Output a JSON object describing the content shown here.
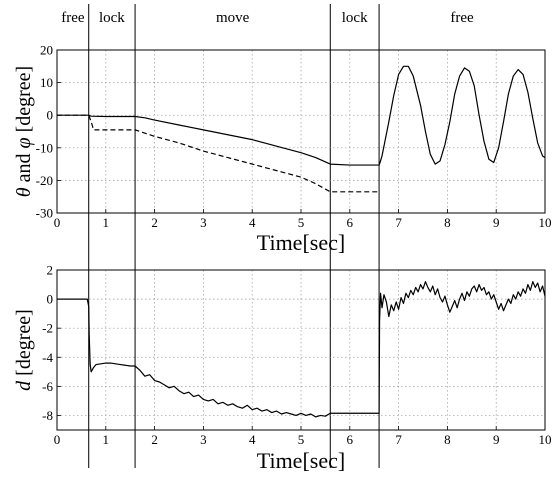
{
  "phases": [
    {
      "label": "free",
      "start": 0,
      "end": 0.65
    },
    {
      "label": "lock",
      "start": 0.65,
      "end": 1.6
    },
    {
      "label": "move",
      "start": 1.6,
      "end": 5.6
    },
    {
      "label": "lock",
      "start": 5.6,
      "end": 6.6
    },
    {
      "label": "free",
      "start": 6.6,
      "end": 10
    }
  ],
  "chart_data": [
    {
      "type": "line",
      "title": "",
      "xlabel": "Time[sec]",
      "ylabel_parts": [
        "θ",
        " and ",
        "φ",
        " [degree]"
      ],
      "xlim": [
        0,
        10
      ],
      "ylim": [
        -30,
        20
      ],
      "xticks": [
        0,
        1,
        2,
        3,
        4,
        5,
        6,
        7,
        8,
        9,
        10
      ],
      "yticks": [
        -30,
        -20,
        -10,
        0,
        10,
        20
      ],
      "grid": true,
      "series": [
        {
          "style": "solid",
          "x": [
            0,
            0.65,
            0.7,
            1.0,
            1.3,
            1.6,
            1.8,
            2.0,
            2.5,
            3.0,
            3.5,
            4.0,
            4.5,
            5.0,
            5.3,
            5.6,
            6.0,
            6.3,
            6.6,
            6.62,
            6.66,
            6.72,
            6.8,
            6.9,
            7.0,
            7.1,
            7.2,
            7.3,
            7.45,
            7.55,
            7.65,
            7.75,
            7.85,
            7.95,
            8.05,
            8.15,
            8.25,
            8.35,
            8.45,
            8.55,
            8.65,
            8.75,
            8.85,
            8.95,
            9.05,
            9.15,
            9.25,
            9.35,
            9.45,
            9.55,
            9.65,
            9.75,
            9.85,
            9.95,
            10
          ],
          "y": [
            0,
            0,
            -0.3,
            -0.4,
            -0.4,
            -0.4,
            -0.8,
            -1.5,
            -3,
            -4.5,
            -6,
            -7.5,
            -9.5,
            -11.5,
            -13,
            -15,
            -15.3,
            -15.3,
            -15.3,
            -14.5,
            -12.5,
            -8,
            -2,
            6,
            12.5,
            15,
            15,
            12,
            3,
            -5,
            -12,
            -15,
            -14,
            -9,
            -2,
            6.5,
            12,
            14.5,
            13.5,
            9,
            0,
            -8,
            -13.5,
            -14.5,
            -10,
            -2,
            6.5,
            12,
            14,
            12.5,
            7,
            -1,
            -8.5,
            -12.5,
            -13
          ]
        },
        {
          "style": "dashed",
          "x": [
            0,
            0.65,
            0.7,
            0.75,
            1.6,
            2.0,
            2.5,
            3.0,
            3.5,
            4.0,
            4.5,
            5.0,
            5.3,
            5.6,
            6.0,
            6.6
          ],
          "y": [
            0,
            0,
            -2,
            -4.5,
            -4.5,
            -6.5,
            -8.5,
            -11,
            -13,
            -15,
            -17,
            -19,
            -21,
            -23.5,
            -23.5,
            -23.5
          ]
        }
      ]
    },
    {
      "type": "line",
      "title": "",
      "xlabel": "Time[sec]",
      "ylabel_parts": [
        "d",
        " [degree]"
      ],
      "xlim": [
        0,
        10
      ],
      "ylim": [
        -9,
        2
      ],
      "xticks": [
        0,
        1,
        2,
        3,
        4,
        5,
        6,
        7,
        8,
        9,
        10
      ],
      "yticks": [
        -8,
        -6,
        -4,
        -2,
        0,
        2
      ],
      "grid": true,
      "series": [
        {
          "style": "solid",
          "x": [
            0,
            0.62,
            0.65,
            0.66,
            0.68,
            0.7,
            0.75,
            0.8,
            0.9,
            1.0,
            1.1,
            1.2,
            1.3,
            1.4,
            1.5,
            1.6,
            1.7,
            1.8,
            1.9,
            2.0,
            2.1,
            2.2,
            2.3,
            2.4,
            2.5,
            2.6,
            2.7,
            2.8,
            2.9,
            3.0,
            3.1,
            3.2,
            3.3,
            3.4,
            3.5,
            3.6,
            3.7,
            3.8,
            3.9,
            4.0,
            4.1,
            4.2,
            4.3,
            4.4,
            4.5,
            4.6,
            4.7,
            4.8,
            4.9,
            5.0,
            5.1,
            5.2,
            5.3,
            5.4,
            5.5,
            5.6,
            5.8,
            6.0,
            6.2,
            6.4,
            6.6,
            6.61,
            6.63,
            6.66,
            6.7,
            6.75,
            6.8,
            6.85,
            6.9,
            6.95,
            7.0,
            7.05,
            7.1,
            7.15,
            7.2,
            7.25,
            7.3,
            7.35,
            7.4,
            7.45,
            7.5,
            7.55,
            7.6,
            7.65,
            7.7,
            7.75,
            7.8,
            7.85,
            7.9,
            7.95,
            8.0,
            8.05,
            8.1,
            8.15,
            8.2,
            8.25,
            8.3,
            8.35,
            8.4,
            8.45,
            8.5,
            8.55,
            8.6,
            8.65,
            8.7,
            8.75,
            8.8,
            8.85,
            8.9,
            8.95,
            9.0,
            9.05,
            9.1,
            9.15,
            9.2,
            9.25,
            9.3,
            9.35,
            9.4,
            9.45,
            9.5,
            9.55,
            9.6,
            9.65,
            9.7,
            9.75,
            9.8,
            9.85,
            9.9,
            9.95,
            10.0
          ],
          "y": [
            0,
            0,
            -0.5,
            -2.5,
            -4.5,
            -5,
            -4.7,
            -4.5,
            -4.45,
            -4.4,
            -4.4,
            -4.45,
            -4.5,
            -4.55,
            -4.6,
            -4.6,
            -4.9,
            -5.3,
            -5.2,
            -5.6,
            -5.7,
            -5.9,
            -6.1,
            -6.0,
            -6.3,
            -6.5,
            -6.4,
            -6.7,
            -6.6,
            -6.9,
            -7.0,
            -6.9,
            -7.2,
            -7.1,
            -7.3,
            -7.2,
            -7.4,
            -7.5,
            -7.3,
            -7.6,
            -7.5,
            -7.7,
            -7.6,
            -7.8,
            -7.7,
            -7.9,
            -7.8,
            -7.9,
            -8.0,
            -7.85,
            -8.0,
            -7.9,
            -8.1,
            -8.0,
            -8.05,
            -7.85,
            -7.85,
            -7.85,
            -7.85,
            -7.85,
            -7.85,
            -1.5,
            0.4,
            -0.6,
            0.3,
            -0.2,
            -1.2,
            -0.4,
            -0.8,
            -0.2,
            -0.7,
            0.1,
            -0.3,
            0.4,
            0.1,
            0.6,
            0.3,
            0.8,
            0.5,
            1.0,
            0.7,
            1.2,
            0.8,
            0.5,
            0.9,
            0.3,
            0.7,
            0.1,
            -0.2,
            0.2,
            -0.4,
            -0.9,
            -0.5,
            -0.1,
            -0.6,
            0.0,
            0.4,
            -0.1,
            0.5,
            0.2,
            0.7,
            0.9,
            0.5,
            1.0,
            0.6,
            0.8,
            0.3,
            0.5,
            0.0,
            0.3,
            -0.2,
            -0.7,
            -0.3,
            -0.8,
            -0.4,
            0.0,
            -0.3,
            0.3,
            0.0,
            0.5,
            0.2,
            0.7,
            0.4,
            1.0,
            0.6,
            1.2,
            0.8,
            1.1,
            0.5,
            0.9,
            0.2
          ]
        }
      ]
    }
  ]
}
